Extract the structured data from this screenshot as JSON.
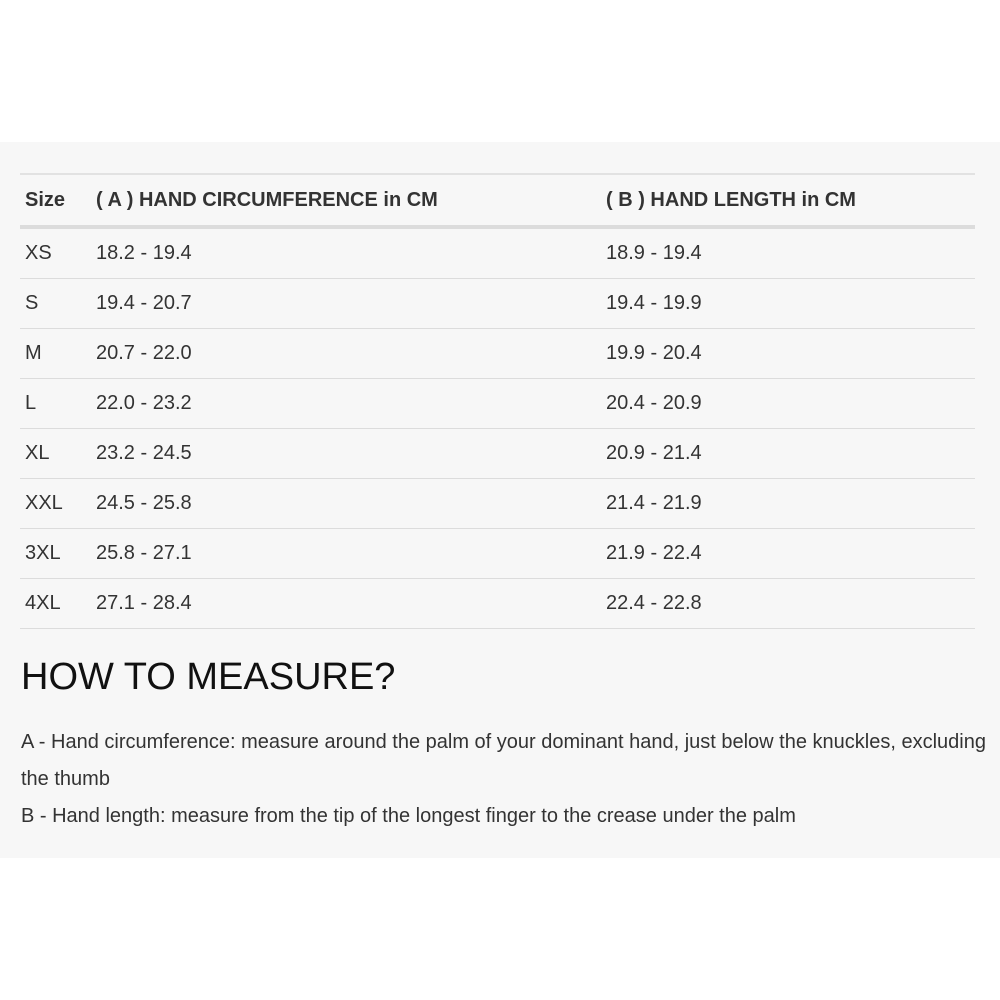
{
  "table": {
    "headers": [
      "Size",
      "( A ) HAND CIRCUMFERENCE in CM",
      "( B ) HAND LENGTH in CM"
    ],
    "rows": [
      [
        "XS",
        "18.2 - 19.4",
        "18.9 - 19.4"
      ],
      [
        "S",
        "19.4 - 20.7",
        "19.4 - 19.9"
      ],
      [
        "M",
        "20.7 - 22.0",
        "19.9 - 20.4"
      ],
      [
        "L",
        "22.0 - 23.2",
        "20.4 - 20.9"
      ],
      [
        "XL",
        "23.2 - 24.5",
        "20.9 - 21.4"
      ],
      [
        "XXL",
        "24.5 - 25.8",
        "21.4 - 21.9"
      ],
      [
        "3XL",
        "25.8 - 27.1",
        "21.9 - 22.4"
      ],
      [
        "4XL",
        "27.1 - 28.4",
        "22.4 - 22.8"
      ]
    ]
  },
  "measure": {
    "title": "HOW TO MEASURE?",
    "lines": [
      "A - Hand circumference: measure around the palm of your dominant hand, just below the knuckles, excluding the thumb",
      "B - Hand length: measure from the tip of the longest finger to the crease under the palm"
    ]
  }
}
